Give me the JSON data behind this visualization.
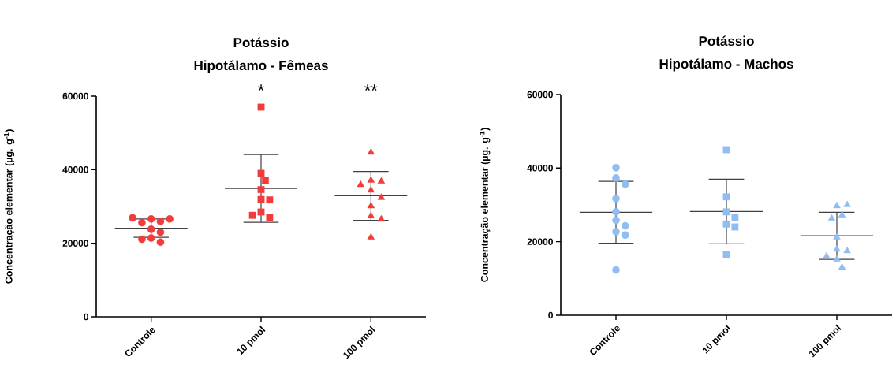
{
  "chart_data": [
    {
      "type": "scatter",
      "title": "Potássio",
      "subtitle": "Hipotálamo - Fêmeas",
      "ylabel": "Concentração elementar (µg. g$^{-1}$)",
      "categories": [
        "Controle",
        "10 pmol",
        "100 pmol"
      ],
      "ylim": [
        0,
        60000
      ],
      "yticks": [
        0,
        20000,
        40000,
        60000
      ],
      "annotations": [
        "*",
        "**"
      ],
      "series": [
        {
          "marker": "circle",
          "color": "#f23c3c",
          "x": [
            "Controle",
            "Controle",
            "Controle",
            "Controle",
            "Controle",
            "Controle",
            "Controle",
            "Controle",
            "Controle",
            "Controle"
          ],
          "values": [
            26600,
            23800,
            25900,
            21400,
            25600,
            20300,
            26600,
            21100,
            26900,
            23000
          ]
        },
        {
          "marker": "square",
          "color": "#f23c3c",
          "x": [
            "10 pmol",
            "10 pmol",
            "10 pmol",
            "10 pmol",
            "10 pmol",
            "10 pmol",
            "10 pmol",
            "10 pmol",
            "10 pmol"
          ],
          "values": [
            57000,
            39000,
            37100,
            34600,
            31900,
            31800,
            28500,
            27000,
            27600
          ]
        },
        {
          "marker": "triangle",
          "color": "#f23c3c",
          "x": [
            "100 pmol",
            "100 pmol",
            "100 pmol",
            "100 pmol",
            "100 pmol",
            "100 pmol",
            "100 pmol",
            "100 pmol",
            "100 pmol",
            "100 pmol"
          ],
          "values": [
            44700,
            37100,
            36800,
            35900,
            34400,
            32400,
            30100,
            27400,
            26500,
            21600
          ]
        },
        {
          "type": "box",
          "color": "#404040",
          "boxes": [
            {
              "low": 21600,
              "q1": 24100,
              "median": 24100,
              "q3": 24100,
              "high": 26600
            },
            {
              "low": 25700,
              "q1": 34900,
              "median": 34900,
              "q3": 34900,
              "high": 44100
            },
            {
              "low": 26200,
              "q1": 32900,
              "median": 32900,
              "q3": 32900,
              "high": 39500
            }
          ]
        }
      ]
    },
    {
      "type": "scatter",
      "title": "Potássio",
      "subtitle": "Hipotálamo - Machos",
      "ylabel": "Concentração elementar (µg. g$^{-1}$)",
      "categories": [
        "Controle",
        "10 pmol",
        "100 pmol"
      ],
      "ylim": [
        0,
        60000
      ],
      "yticks": [
        0,
        20000,
        40000,
        60000
      ],
      "series": [
        {
          "marker": "circle",
          "color": "#90bdf2",
          "x": [
            "Controle",
            "Controle",
            "Controle",
            "Controle",
            "Controle",
            "Controle",
            "Controle",
            "Controle",
            "Controle",
            "Controle"
          ],
          "values": [
            40100,
            37300,
            35600,
            31700,
            28100,
            25800,
            24300,
            22700,
            21800,
            12300
          ]
        },
        {
          "marker": "square",
          "color": "#90bdf2",
          "x": [
            "10 pmol",
            "10 pmol",
            "10 pmol",
            "10 pmol",
            "10 pmol",
            "10 pmol",
            "10 pmol"
          ],
          "values": [
            45000,
            32200,
            28100,
            26600,
            24800,
            24000,
            16500
          ]
        },
        {
          "marker": "triangle",
          "color": "#90bdf2",
          "x": [
            "100 pmol",
            "100 pmol",
            "100 pmol",
            "100 pmol",
            "100 pmol",
            "100 pmol",
            "100 pmol",
            "100 pmol",
            "100 pmol",
            "100 pmol"
          ],
          "values": [
            29700,
            30000,
            27200,
            26300,
            21200,
            17900,
            17500,
            16000,
            15200,
            13000
          ]
        },
        {
          "type": "box",
          "color": "#404040",
          "boxes": [
            {
              "low": 19600,
              "q1": 28000,
              "median": 28000,
              "q3": 28000,
              "high": 36400
            },
            {
              "low": 19400,
              "q1": 28200,
              "median": 28200,
              "q3": 28200,
              "high": 37000
            },
            {
              "low": 15200,
              "q1": 21600,
              "median": 21600,
              "q3": 21600,
              "high": 28000
            }
          ]
        }
      ]
    }
  ]
}
